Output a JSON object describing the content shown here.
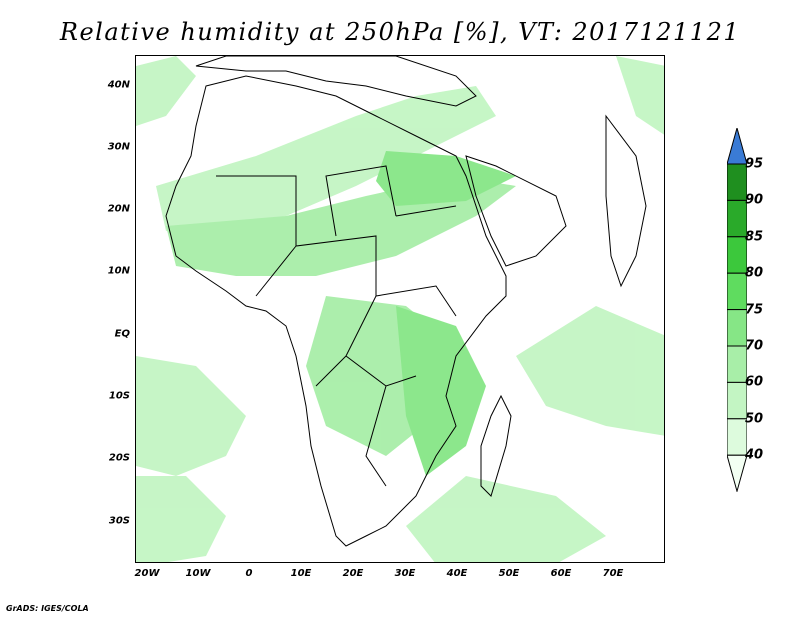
{
  "title": "Relative humidity at 250hPa [%], VT: 2017121121",
  "footer": "GrADS: IGES/COLA",
  "map": {
    "lat_labels": [
      "40N",
      "30N",
      "20N",
      "10N",
      "EQ",
      "10S",
      "20S",
      "30S"
    ],
    "lon_labels": [
      "20W",
      "10W",
      "0",
      "10E",
      "20E",
      "30E",
      "40E",
      "50E",
      "60E",
      "70E"
    ]
  },
  "colorbar": {
    "levels": [
      "40",
      "50",
      "60",
      "70",
      "75",
      "80",
      "85",
      "90",
      "95"
    ],
    "colors": [
      "#f3fff3",
      "#ddfbdd",
      "#c3f5c3",
      "#a8eea8",
      "#86e686",
      "#5fdc5f",
      "#3cc83c",
      "#2aaa2a",
      "#1f8f1f",
      "#3a7bd5"
    ]
  }
}
